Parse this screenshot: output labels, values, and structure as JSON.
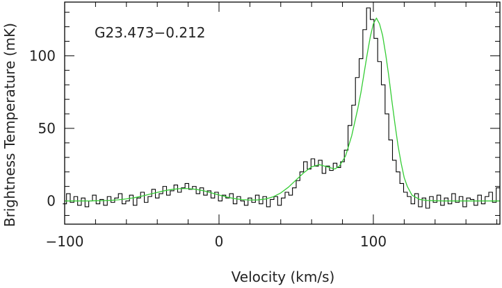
{
  "chart_data": {
    "type": "line",
    "annotation": "G23.473−0.212",
    "xlabel": "Velocity (km/s)",
    "ylabel": "Brightness Temperature (mK)",
    "xlim": [
      -100,
      182
    ],
    "ylim": [
      -16,
      137
    ],
    "xticks_major": [
      -100,
      0,
      100
    ],
    "xtick_labels": [
      "−100",
      "0",
      "100"
    ],
    "xticks_minor_step": 20,
    "yticks_major": [
      0,
      50,
      100
    ],
    "ytick_labels": [
      "0",
      "50",
      "100"
    ],
    "yticks_minor_step": 10,
    "grid": false,
    "legend": false,
    "series": [
      {
        "style": "histogram",
        "color": "#000000",
        "x": [
          -100.0,
          -97.6,
          -95.2,
          -92.8,
          -90.4,
          -88.0,
          -85.6,
          -83.2,
          -80.8,
          -78.4,
          -76.0,
          -73.6,
          -71.2,
          -68.8,
          -66.4,
          -64.0,
          -61.6,
          -59.2,
          -56.8,
          -54.4,
          -52.0,
          -49.6,
          -47.2,
          -44.8,
          -42.4,
          -40.0,
          -37.6,
          -35.2,
          -32.8,
          -30.4,
          -28.0,
          -25.6,
          -23.2,
          -20.8,
          -18.4,
          -16.0,
          -13.6,
          -11.2,
          -8.8,
          -6.4,
          -4.0,
          -1.6,
          0.8,
          3.2,
          5.6,
          8.0,
          10.4,
          12.8,
          15.2,
          17.6,
          20.0,
          22.4,
          24.8,
          27.2,
          29.6,
          32.0,
          34.4,
          36.8,
          39.2,
          41.6,
          44.0,
          46.4,
          48.8,
          51.2,
          53.6,
          56.0,
          58.4,
          60.8,
          63.2,
          65.6,
          68.0,
          70.4,
          72.8,
          75.2,
          77.6,
          80.0,
          82.4,
          84.8,
          87.2,
          89.6,
          92.0,
          94.4,
          96.8,
          99.2,
          101.6,
          104.0,
          106.4,
          108.8,
          111.2,
          113.6,
          116.0,
          118.4,
          120.8,
          123.2,
          125.6,
          128.0,
          130.4,
          132.8,
          135.2,
          137.6,
          140.0,
          142.4,
          144.8,
          147.2,
          149.6,
          152.0,
          154.4,
          156.8,
          159.2,
          161.6,
          164.0,
          166.4,
          168.8,
          171.2,
          173.6,
          176.0,
          178.4,
          180.8
        ],
        "values": [
          -2,
          5,
          -1,
          3,
          -3,
          2,
          -4,
          0,
          4,
          -2,
          1,
          -3,
          3,
          -1,
          2,
          5,
          -2,
          0,
          4,
          -3,
          2,
          6,
          -1,
          3,
          8,
          2,
          5,
          10,
          4,
          7,
          11,
          6,
          9,
          12,
          8,
          10,
          5,
          9,
          4,
          7,
          2,
          6,
          0,
          4,
          2,
          5,
          -2,
          3,
          0,
          -3,
          2,
          -1,
          4,
          -2,
          3,
          -4,
          1,
          3,
          -3,
          2,
          6,
          4,
          9,
          14,
          20,
          27,
          22,
          29,
          24,
          28,
          19,
          24,
          21,
          26,
          23,
          27,
          35,
          52,
          66,
          85,
          98,
          118,
          133,
          125,
          112,
          96,
          80,
          60,
          42,
          28,
          20,
          12,
          6,
          3,
          -2,
          5,
          -4,
          2,
          -5,
          3,
          -1,
          4,
          -3,
          2,
          -2,
          5,
          -1,
          3,
          -4,
          2,
          1,
          -3,
          4,
          -2,
          3,
          6,
          -1,
          9
        ]
      },
      {
        "style": "line",
        "color": "#33cc33",
        "x": [
          -100,
          -95,
          -90,
          -85,
          -80,
          -75,
          -70,
          -65,
          -60,
          -55,
          -50,
          -45,
          -40,
          -35,
          -30,
          -25,
          -20,
          -15,
          -10,
          -5,
          0,
          5,
          10,
          15,
          20,
          25,
          30,
          35,
          40,
          45,
          50,
          55,
          60,
          65,
          70,
          75,
          78,
          82,
          86,
          90,
          92,
          94,
          96,
          98,
          100,
          102,
          104,
          106,
          108,
          110,
          112,
          114,
          116,
          118,
          120,
          122,
          125,
          130,
          135,
          140,
          145,
          150,
          160,
          170,
          182
        ],
        "values": [
          0,
          0,
          0,
          0,
          0.1,
          0.2,
          0.4,
          0.8,
          1.4,
          2.2,
          3.3,
          4.6,
          5.9,
          7.1,
          8.0,
          8.5,
          8.5,
          8.0,
          7.0,
          5.6,
          4.1,
          2.7,
          1.6,
          0.9,
          0.6,
          0.7,
          1.3,
          2.8,
          5.5,
          9.5,
          14.5,
          19.5,
          23.5,
          25.0,
          23.5,
          22.0,
          24.0,
          31.0,
          45.0,
          64.0,
          75.0,
          88.0,
          101.0,
          113.0,
          122.0,
          126.0,
          122.0,
          114.0,
          101.0,
          86.0,
          69.0,
          53.0,
          38.0,
          26.0,
          16.0,
          10.0,
          4.0,
          1.0,
          0.3,
          0.1,
          0,
          0,
          0,
          0,
          0
        ]
      }
    ]
  }
}
